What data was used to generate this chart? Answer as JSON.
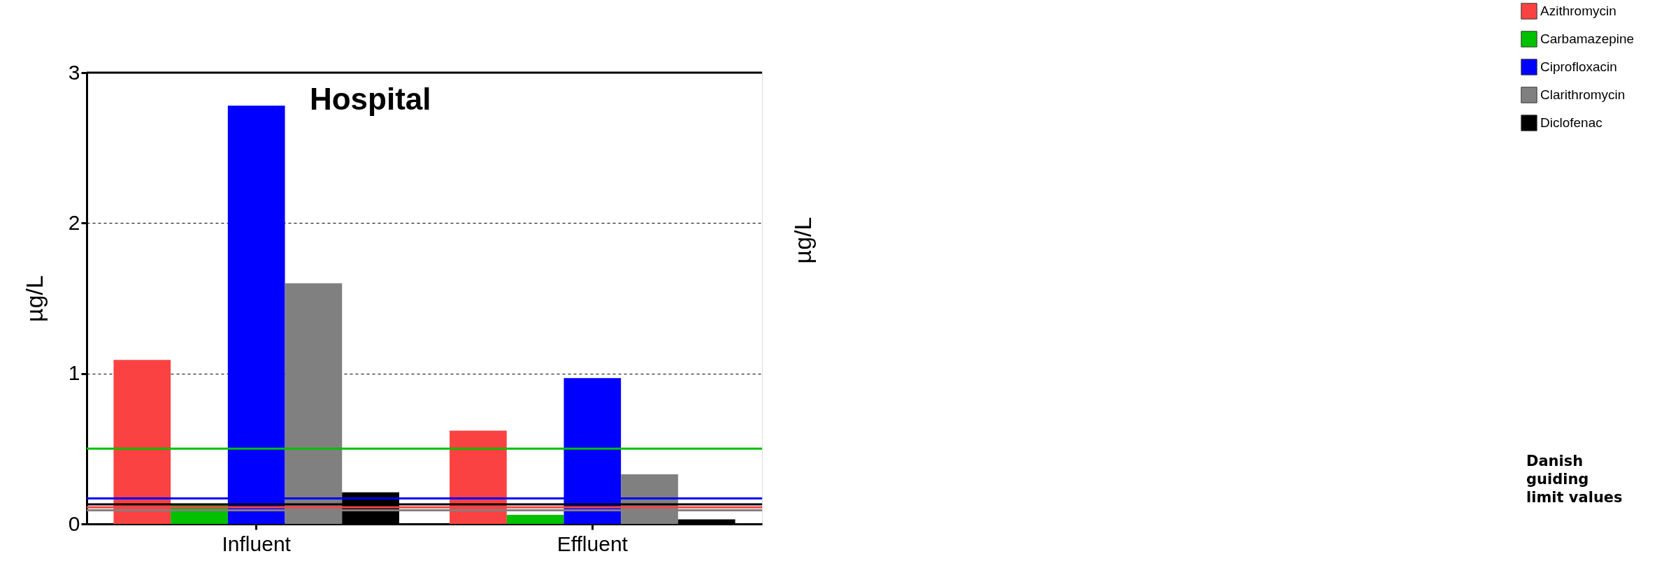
{
  "chart_data": {
    "type": "bar",
    "title": "Hospital",
    "ylabel": "µg/L",
    "y2label": "µg/L",
    "categories": [
      "Influent",
      "Effluent"
    ],
    "series": [
      {
        "name": "Azithromycin",
        "color": "#fa4242",
        "values": [
          1.09,
          0.62
        ]
      },
      {
        "name": "Carbamazepine",
        "color": "#00c000",
        "values": [
          0.13,
          0.06
        ]
      },
      {
        "name": "Ciprofloxacin",
        "color": "#0000ff",
        "values": [
          2.78,
          0.97
        ]
      },
      {
        "name": "Clarithromycin",
        "color": "#808080",
        "values": [
          1.6,
          0.33
        ]
      },
      {
        "name": "Diclofenac",
        "color": "#000000",
        "values": [
          0.21,
          0.03
        ]
      }
    ],
    "ylim": [
      0,
      3
    ],
    "yticks": [
      0,
      1,
      2,
      3
    ],
    "grid": "y",
    "legend": "top right",
    "ref_lines": [
      {
        "axis": "y",
        "value": 0.5,
        "color": "#00c000"
      },
      {
        "axis": "y",
        "value": 0.17,
        "color": "#0000ff"
      },
      {
        "axis": "y",
        "value": 0.13,
        "color": "#000000"
      },
      {
        "axis": "y",
        "value": 0.11,
        "color": "#fa4242"
      },
      {
        "axis": "y",
        "value": 0.09,
        "color": "#808080"
      }
    ],
    "annotations": [
      "Danish guiding limit values"
    ]
  }
}
